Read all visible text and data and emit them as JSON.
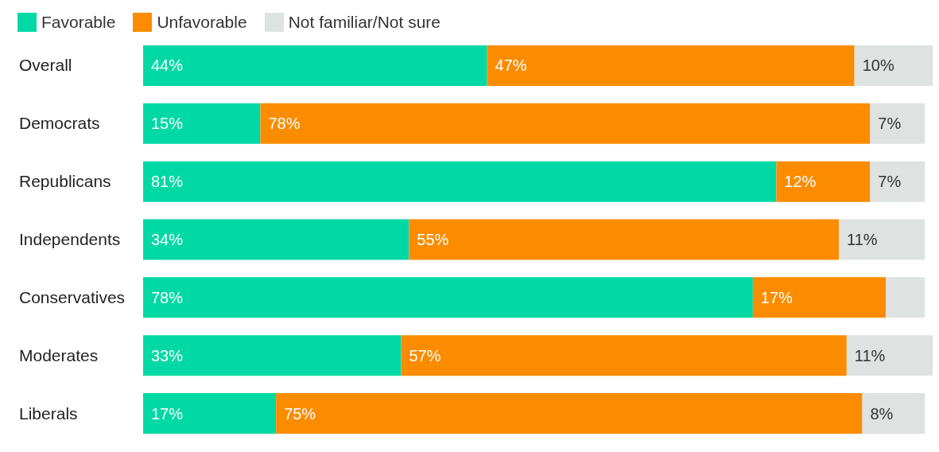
{
  "chart_data": {
    "type": "bar",
    "orientation": "horizontal",
    "stacked": true,
    "legend": "top left",
    "categories": [
      "Overall",
      "Democrats",
      "Republicans",
      "Independents",
      "Conservatives",
      "Moderates",
      "Liberals"
    ],
    "series": [
      {
        "name": "Favorable",
        "color": "#00d9a5",
        "values": [
          44,
          15,
          81,
          34,
          78,
          33,
          17
        ],
        "value_labels": [
          "44%",
          "15%",
          "81%",
          "34%",
          "78%",
          "33%",
          "17%"
        ]
      },
      {
        "name": "Unfavorable",
        "color": "#fb8c00",
        "values": [
          47,
          78,
          12,
          55,
          17,
          57,
          75
        ],
        "value_labels": [
          "47%",
          "78%",
          "12%",
          "55%",
          "17%",
          "57%",
          "75%"
        ]
      },
      {
        "name": "Not familiar/Not sure",
        "color": "#dee2e0",
        "values": [
          10,
          7,
          7,
          11,
          5,
          11,
          8
        ],
        "value_labels": [
          "10%",
          "7%",
          "7%",
          "11%",
          null,
          "11%",
          "8%"
        ]
      }
    ]
  }
}
